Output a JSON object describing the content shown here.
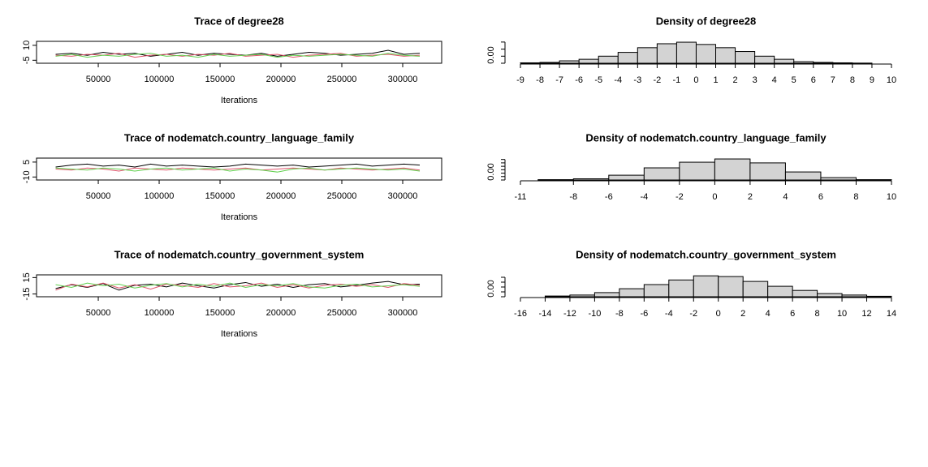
{
  "chart_data": [
    {
      "type": "line",
      "title": "Trace of degree28",
      "xlabel": "Iterations",
      "x": [
        15000,
        28000,
        41000,
        54000,
        67000,
        80000,
        93000,
        106000,
        119000,
        132000,
        145000,
        158000,
        171000,
        184000,
        197000,
        210000,
        223000,
        236000,
        249000,
        262000,
        275000,
        288000,
        301000,
        314000
      ],
      "series": [
        {
          "color": "#000000",
          "values": [
            1,
            2,
            0,
            3,
            1,
            2,
            -1,
            1,
            3,
            0,
            2,
            1,
            0,
            2,
            -1,
            1,
            3,
            2,
            0,
            1,
            2,
            5,
            1,
            2
          ]
        },
        {
          "color": "#DF536B",
          "values": [
            0,
            -1,
            1,
            0,
            2,
            -2,
            0,
            1,
            -1,
            1,
            0,
            2,
            -1,
            0,
            1,
            -2,
            0,
            1,
            2,
            -1,
            0,
            1,
            -1,
            0
          ]
        },
        {
          "color": "#61D04F",
          "values": [
            -1,
            1,
            -2,
            0,
            -1,
            1,
            2,
            -1,
            0,
            -2,
            1,
            -1,
            0,
            1,
            -2,
            0,
            -1,
            0,
            1,
            0,
            -1,
            2,
            0,
            -1
          ]
        }
      ],
      "xlim": [
        -700,
        332000
      ],
      "xticks": [
        50000,
        100000,
        150000,
        200000,
        250000,
        300000
      ],
      "ylim": [
        -8,
        14
      ],
      "yticks": [
        -5,
        10
      ]
    },
    {
      "type": "histogram",
      "title": "Density of degree28",
      "bins": [
        -9,
        -8,
        -7,
        -6,
        -5,
        -4,
        -3,
        -2,
        -1,
        0,
        1,
        2,
        3,
        4,
        5,
        6,
        7,
        8,
        9,
        10
      ],
      "values": [
        0.003,
        0.006,
        0.017,
        0.028,
        0.05,
        0.077,
        0.11,
        0.138,
        0.149,
        0.133,
        0.11,
        0.083,
        0.05,
        0.028,
        0.011,
        0.006,
        0.003,
        0.001,
        0
      ],
      "color": "#D3D3D3",
      "xlim": [
        -9,
        10
      ],
      "xticks": [
        -9,
        -8,
        -7,
        -6,
        -5,
        -4,
        -3,
        -2,
        -1,
        0,
        1,
        2,
        3,
        4,
        5,
        6,
        7,
        8,
        9,
        10
      ],
      "ylim": [
        0,
        0.155
      ],
      "yticks": [
        {
          "value": 0,
          "label": "0.00"
        }
      ],
      "yticks_unlabeled": [
        0.05,
        0.1,
        0.15
      ]
    },
    {
      "type": "line",
      "title": "Trace of nodematch.country_language_family",
      "xlabel": "Iterations",
      "x": [
        15000,
        28000,
        41000,
        54000,
        67000,
        80000,
        93000,
        106000,
        119000,
        132000,
        145000,
        158000,
        171000,
        184000,
        197000,
        210000,
        223000,
        236000,
        249000,
        262000,
        275000,
        288000,
        301000,
        314000
      ],
      "series": [
        {
          "color": "#000000",
          "values": [
            0,
            2,
            3,
            1,
            2,
            0,
            3,
            1,
            2,
            1,
            0,
            1,
            3,
            2,
            1,
            2,
            0,
            1,
            2,
            3,
            1,
            2,
            3,
            2
          ]
        },
        {
          "color": "#DF536B",
          "values": [
            -2,
            -3,
            -1,
            -2,
            -4,
            -1,
            -2,
            -3,
            -1,
            -2,
            -3,
            -2,
            -1,
            -3,
            -2,
            -1,
            -2,
            -3,
            -1,
            -2,
            -3,
            -2,
            -1,
            -3
          ]
        },
        {
          "color": "#61D04F",
          "values": [
            -1,
            -2,
            -3,
            -1,
            -2,
            -4,
            -2,
            -1,
            -3,
            -2,
            -1,
            -4,
            -2,
            -3,
            -5,
            -2,
            -1,
            -3,
            -2,
            -1,
            -2,
            -3,
            -2,
            -4
          ]
        }
      ],
      "xlim": [
        -700,
        332000
      ],
      "xticks": [
        50000,
        100000,
        150000,
        200000,
        250000,
        300000
      ],
      "ylim": [
        -13,
        9
      ],
      "yticks": [
        -10,
        5
      ]
    },
    {
      "type": "histogram",
      "title": "Density of nodematch.country_language_family",
      "bins": [
        -10,
        -8,
        -6,
        -4,
        -2,
        0,
        2,
        4,
        6,
        8,
        10
      ],
      "values": [
        0.002,
        0.007,
        0.028,
        0.071,
        0.104,
        0.123,
        0.1,
        0.047,
        0.014,
        0.002
      ],
      "color": "#D3D3D3",
      "xlim": [
        -11,
        10
      ],
      "xticks": [
        -11,
        -8,
        -6,
        -4,
        -2,
        0,
        2,
        4,
        6,
        8,
        10
      ],
      "ylim": [
        0,
        0.128
      ],
      "yticks": [
        {
          "value": 0,
          "label": "0.00"
        }
      ],
      "yticks_unlabeled": [
        0.02,
        0.04,
        0.06,
        0.08,
        0.1,
        0.12
      ]
    },
    {
      "type": "line",
      "title": "Trace of nodematch.country_government_system",
      "xlabel": "Iterations",
      "x": [
        15000,
        28000,
        41000,
        54000,
        67000,
        80000,
        93000,
        106000,
        119000,
        132000,
        145000,
        158000,
        171000,
        184000,
        197000,
        210000,
        223000,
        236000,
        249000,
        262000,
        275000,
        288000,
        301000,
        314000
      ],
      "series": [
        {
          "color": "#000000",
          "values": [
            -5,
            2,
            -3,
            4,
            -8,
            1,
            3,
            -2,
            5,
            0,
            -4,
            2,
            6,
            -1,
            3,
            -3,
            2,
            4,
            -2,
            1,
            5,
            8,
            2,
            3
          ]
        },
        {
          "color": "#DF536B",
          "values": [
            -8,
            3,
            -2,
            5,
            -4,
            2,
            -6,
            3,
            1,
            -3,
            4,
            -2,
            0,
            5,
            -3,
            2,
            -4,
            1,
            3,
            -1,
            2,
            -3,
            4,
            1
          ]
        },
        {
          "color": "#61D04F",
          "values": [
            2,
            -3,
            5,
            0,
            3,
            -4,
            1,
            4,
            -2,
            3,
            -1,
            5,
            -3,
            2,
            0,
            4,
            -2,
            -4,
            1,
            3,
            -2,
            0,
            2,
            -1
          ]
        }
      ],
      "xlim": [
        -700,
        332000
      ],
      "xticks": [
        50000,
        100000,
        150000,
        200000,
        250000,
        300000
      ],
      "ylim": [
        -20,
        20
      ],
      "yticks": [
        -15,
        15
      ]
    },
    {
      "type": "histogram",
      "title": "Density of nodematch.country_government_system",
      "bins": [
        -16,
        -14,
        -12,
        -10,
        -8,
        -6,
        -4,
        -2,
        0,
        2,
        4,
        6,
        8,
        10,
        12,
        14
      ],
      "values": [
        0,
        0.003,
        0.007,
        0.017,
        0.033,
        0.05,
        0.069,
        0.086,
        0.083,
        0.063,
        0.043,
        0.026,
        0.013,
        0.007,
        0.002
      ],
      "color": "#D3D3D3",
      "xlim": [
        -16,
        14
      ],
      "xticks": [
        -16,
        -14,
        -12,
        -10,
        -8,
        -6,
        -4,
        -2,
        0,
        2,
        4,
        6,
        8,
        10,
        12,
        14
      ],
      "ylim": [
        0,
        0.09
      ],
      "yticks": [
        {
          "value": 0,
          "label": "0.00"
        }
      ],
      "yticks_unlabeled": [
        0.02,
        0.04,
        0.06,
        0.08
      ]
    }
  ]
}
